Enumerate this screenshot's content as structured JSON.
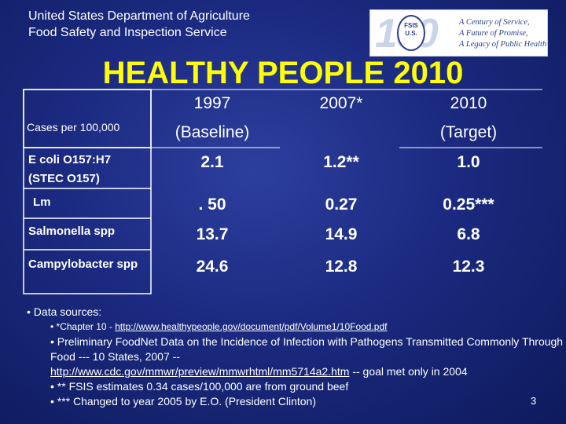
{
  "header": {
    "agency_line1": "United States Department of Agriculture",
    "agency_line2": "Food Safety and Inspection Service"
  },
  "logo": {
    "number": "100",
    "seal_line1": "FSIS",
    "seal_line2": "U.S.",
    "tagline1": "A Century of Service,",
    "tagline2": "A Future of Promise,",
    "tagline3": "A Legacy of Public Health"
  },
  "title": "HEALTHY PEOPLE 2010",
  "table": {
    "corner_label": "Cases per 100,000",
    "columns": [
      {
        "line1": "1997",
        "line2": "(Baseline)"
      },
      {
        "line1": "2007*",
        "line2": ""
      },
      {
        "line1": "2010",
        "line2": "(Target)"
      }
    ],
    "rows": [
      {
        "label": "E coli O157:H7 (STEC O157)",
        "values": [
          "2.1",
          "1.2**",
          "1.0"
        ]
      },
      {
        "label": "Lm",
        "values": [
          ". 50",
          "0.27",
          "0.25***"
        ]
      },
      {
        "label": "Salmonella spp",
        "values": [
          "13.7",
          "14.9",
          "6.8"
        ]
      },
      {
        "label": "Campylobacter spp",
        "values": [
          "24.6",
          "12.8",
          "12.3"
        ]
      }
    ]
  },
  "sources": {
    "heading": "• Data sources:",
    "item1_prefix": "• *Chapter 10 - ",
    "item1_link": "http://www.healthypeople.gov/document/pdf/Volume1/10Food.pdf",
    "item2_text": "• Preliminary FoodNet Data on the Incidence of Infection with Pathogens Transmitted Commonly Through Food --- 10 States, 2007 --",
    "item2_link": "http://www.cdc.gov/mmwr/preview/mmwrhtml/mm5714a2.htm",
    "item2_suffix": " -- goal met only in 2004",
    "item3": "• ** FSIS estimates 0.34 cases/100,000 are from ground beef",
    "item4": "• *** Changed to year 2005 by E.O. (President Clinton)"
  },
  "page_number": "3",
  "colors": {
    "title": "#ffff00",
    "background": "#1b2a80",
    "text": "#ffffff"
  }
}
